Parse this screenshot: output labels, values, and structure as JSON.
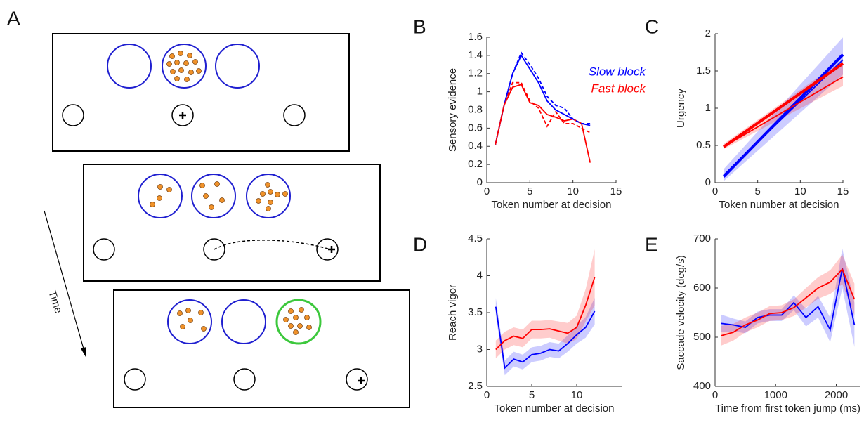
{
  "panel_a": {
    "letter": "A",
    "time_label": "Time"
  },
  "chart_data": [
    {
      "type": "line",
      "letter": "B",
      "xlabel": "Token number at decision",
      "ylabel": "Sensory evidence",
      "x": [
        1,
        2,
        3,
        4,
        5,
        6,
        7,
        8,
        9,
        10,
        11,
        12
      ],
      "xlim": [
        0,
        15
      ],
      "xticks": [
        0,
        5,
        10,
        15
      ],
      "ylim": [
        0,
        1.6
      ],
      "yticks": [
        0,
        0.2,
        0.4,
        0.6,
        0.8,
        1,
        1.2,
        1.4,
        1.6
      ],
      "legend": "upper right",
      "series": [
        {
          "name": "Slow block",
          "color": "#0000ff",
          "values": [
            0.42,
            0.85,
            1.2,
            1.4,
            1.25,
            1.1,
            0.9,
            0.8,
            0.75,
            0.7,
            0.65,
            0.63
          ]
        },
        {
          "name": "Fast block",
          "color": "#ff0000",
          "values": [
            0.42,
            0.85,
            1.05,
            1.08,
            0.88,
            0.85,
            0.75,
            0.72,
            0.68,
            0.7,
            0.65,
            0.22
          ]
        },
        {
          "color": "#0000ff",
          "dashed": true,
          "values": [
            0.42,
            0.85,
            1.2,
            1.43,
            1.3,
            1.15,
            0.95,
            0.85,
            0.82,
            0.7,
            0.65,
            0.65
          ]
        },
        {
          "color": "#ff0000",
          "dashed": true,
          "values": [
            0.42,
            0.85,
            1.1,
            1.1,
            0.9,
            0.82,
            0.62,
            0.78,
            0.65,
            0.65,
            0.6,
            0.55
          ]
        }
      ]
    },
    {
      "type": "line",
      "letter": "C",
      "xlabel": "Token number at decision",
      "ylabel": "Urgency",
      "x": [
        1,
        15
      ],
      "xlim": [
        0,
        15
      ],
      "xticks": [
        0,
        5,
        10,
        15
      ],
      "ylim": [
        0,
        2
      ],
      "yticks": [
        0,
        0.5,
        1,
        1.5,
        2
      ],
      "series": [
        {
          "color": "#0000ff",
          "thick": true,
          "values": [
            0.08,
            1.72
          ],
          "lower": [
            0.02,
            1.45
          ],
          "upper": [
            0.18,
            1.95
          ]
        },
        {
          "color": "#0000ff",
          "values": [
            0.1,
            1.65
          ]
        },
        {
          "color": "#ff0000",
          "thick": true,
          "values": [
            0.48,
            1.6
          ],
          "lower": [
            0.45,
            1.3
          ],
          "upper": [
            0.52,
            1.65
          ]
        },
        {
          "color": "#ff0000",
          "values": [
            0.48,
            1.42
          ]
        }
      ]
    },
    {
      "type": "line",
      "letter": "D",
      "xlabel": "Token number at decision",
      "ylabel": "Reach vigor",
      "x": [
        1,
        2,
        3,
        4,
        5,
        6,
        7,
        8,
        9,
        10,
        11,
        12
      ],
      "xlim": [
        0,
        15
      ],
      "xticks": [
        0,
        5,
        10
      ],
      "ylim": [
        2.5,
        4.5
      ],
      "yticks": [
        2.5,
        3,
        3.5,
        4,
        4.5
      ],
      "series": [
        {
          "color": "#0000ff",
          "values": [
            3.58,
            2.75,
            2.87,
            2.83,
            2.93,
            2.95,
            3.0,
            2.98,
            3.08,
            3.2,
            3.3,
            3.52
          ],
          "lower": [
            3.46,
            2.65,
            2.77,
            2.73,
            2.83,
            2.85,
            2.9,
            2.88,
            2.97,
            3.08,
            3.16,
            3.34
          ],
          "upper": [
            3.7,
            2.85,
            2.97,
            2.93,
            3.03,
            3.05,
            3.1,
            3.08,
            3.19,
            3.32,
            3.44,
            3.7
          ]
        },
        {
          "color": "#ff0000",
          "values": [
            3.0,
            3.12,
            3.18,
            3.15,
            3.27,
            3.27,
            3.28,
            3.25,
            3.22,
            3.3,
            3.6,
            3.98
          ],
          "lower": [
            2.88,
            3.0,
            3.06,
            3.03,
            3.15,
            3.15,
            3.16,
            3.12,
            3.08,
            3.14,
            3.38,
            3.6
          ],
          "upper": [
            3.12,
            3.24,
            3.3,
            3.27,
            3.39,
            3.39,
            3.4,
            3.38,
            3.36,
            3.46,
            3.82,
            4.36
          ]
        }
      ]
    },
    {
      "type": "line",
      "letter": "E",
      "xlabel": "Time from first token jump (ms)",
      "ylabel": "Saccade velocity (deg/s)",
      "x": [
        100,
        300,
        500,
        700,
        900,
        1100,
        1300,
        1500,
        1700,
        1900,
        2100,
        2300
      ],
      "xlim": [
        0,
        2400
      ],
      "xticks": [
        0,
        1000,
        2000
      ],
      "ylim": [
        400,
        700
      ],
      "yticks": [
        400,
        500,
        600,
        700
      ],
      "series": [
        {
          "color": "#0000ff",
          "values": [
            528,
            525,
            520,
            540,
            545,
            545,
            570,
            540,
            562,
            515,
            640,
            525
          ],
          "lower": [
            510,
            512,
            508,
            528,
            533,
            533,
            555,
            522,
            540,
            490,
            600,
            480
          ],
          "upper": [
            546,
            538,
            532,
            552,
            557,
            557,
            585,
            558,
            584,
            540,
            680,
            570
          ]
        },
        {
          "color": "#ff0000",
          "values": [
            503,
            510,
            525,
            535,
            548,
            550,
            560,
            580,
            600,
            612,
            638,
            577
          ],
          "lower": [
            483,
            493,
            510,
            520,
            533,
            535,
            543,
            560,
            578,
            588,
            608,
            545
          ],
          "upper": [
            523,
            527,
            540,
            550,
            563,
            565,
            577,
            600,
            622,
            636,
            668,
            609
          ]
        }
      ]
    }
  ]
}
